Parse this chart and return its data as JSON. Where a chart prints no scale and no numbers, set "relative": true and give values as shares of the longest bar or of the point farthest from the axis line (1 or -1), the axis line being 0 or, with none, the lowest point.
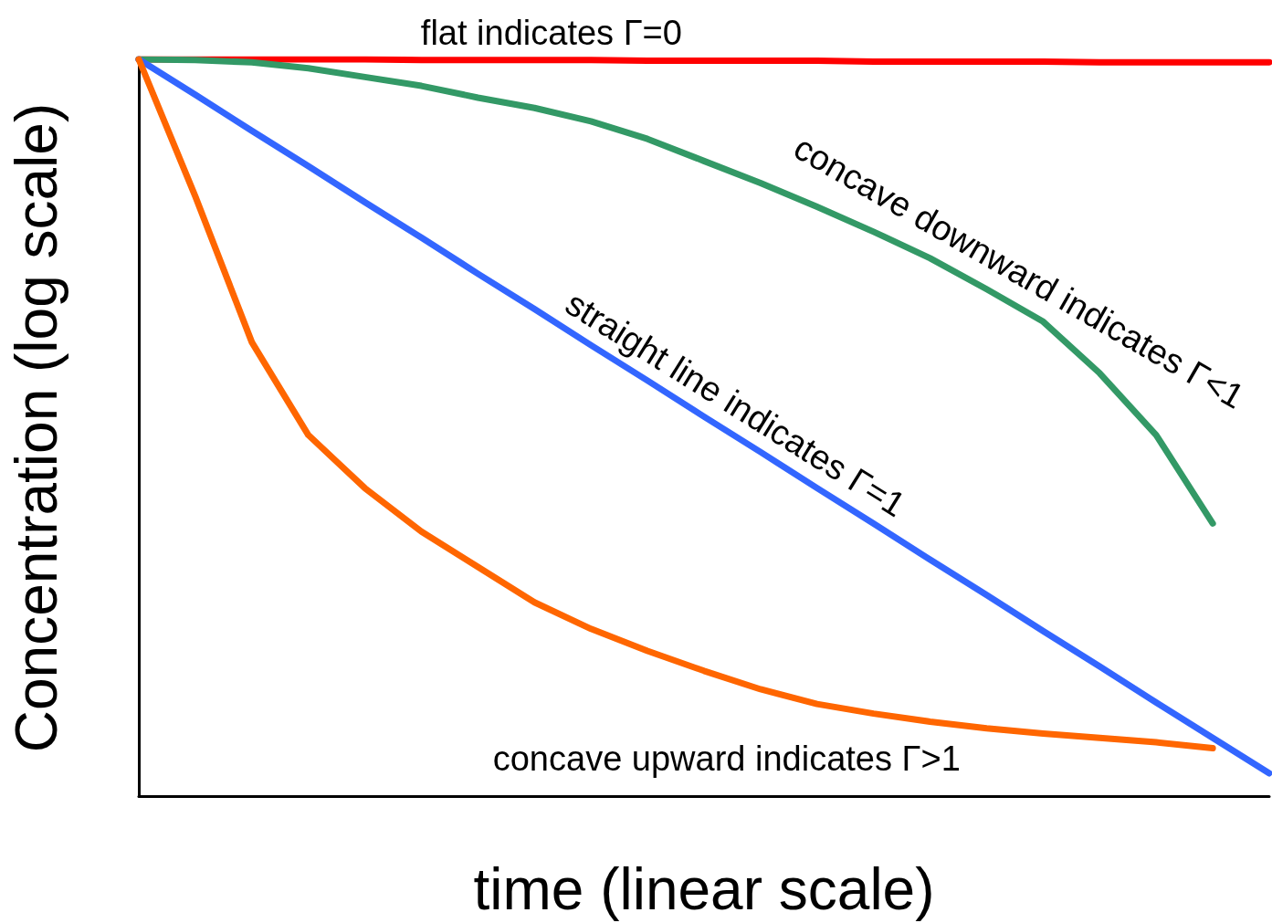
{
  "chart_data": {
    "type": "line",
    "relative": true,
    "xlabel": "time (linear scale)",
    "ylabel": "Concentration (log scale)",
    "categories": [
      null,
      null,
      null,
      null,
      null,
      null,
      null,
      null,
      null,
      null,
      null,
      null,
      null,
      null,
      null,
      null,
      null,
      null,
      null,
      null,
      null
    ],
    "marker": "none",
    "grid": false,
    "legend": false,
    "series": [
      {
        "name": "flat indicates Γ=0",
        "color": "#ff0000",
        "values": [
          1,
          1,
          1,
          1,
          1,
          0.999,
          0.999,
          0.999,
          0.999,
          0.998,
          0.998,
          0.998,
          0.998,
          0.997,
          0.997,
          0.997,
          0.997,
          0.996,
          0.996,
          0.996,
          0.996
        ]
      },
      {
        "name": "concave downward indicates Γ<1",
        "color": "#339966",
        "values": [
          1,
          0.999,
          0.996,
          0.988,
          0.976,
          0.964,
          0.948,
          0.934,
          0.916,
          0.892,
          0.862,
          0.832,
          0.8,
          0.766,
          0.73,
          0.688,
          0.644,
          0.574,
          0.49,
          0.37,
          null
        ]
      },
      {
        "name": "straight line indicates Γ=1",
        "color": "#3366ff",
        "values": [
          1,
          0.952,
          0.903,
          0.855,
          0.806,
          0.758,
          0.709,
          0.661,
          0.612,
          0.564,
          0.515,
          0.467,
          0.418,
          0.37,
          0.321,
          0.273,
          0.224,
          0.176,
          0.127,
          0.079,
          0.031
        ]
      },
      {
        "name": "concave upward indicates Γ>1",
        "color": "#ff6600",
        "values": [
          1,
          0.814,
          0.616,
          0.49,
          0.418,
          0.359,
          0.311,
          0.263,
          0.227,
          0.197,
          0.17,
          0.145,
          0.125,
          0.112,
          0.101,
          0.092,
          0.085,
          0.079,
          0.073,
          0.065,
          null
        ]
      }
    ]
  }
}
